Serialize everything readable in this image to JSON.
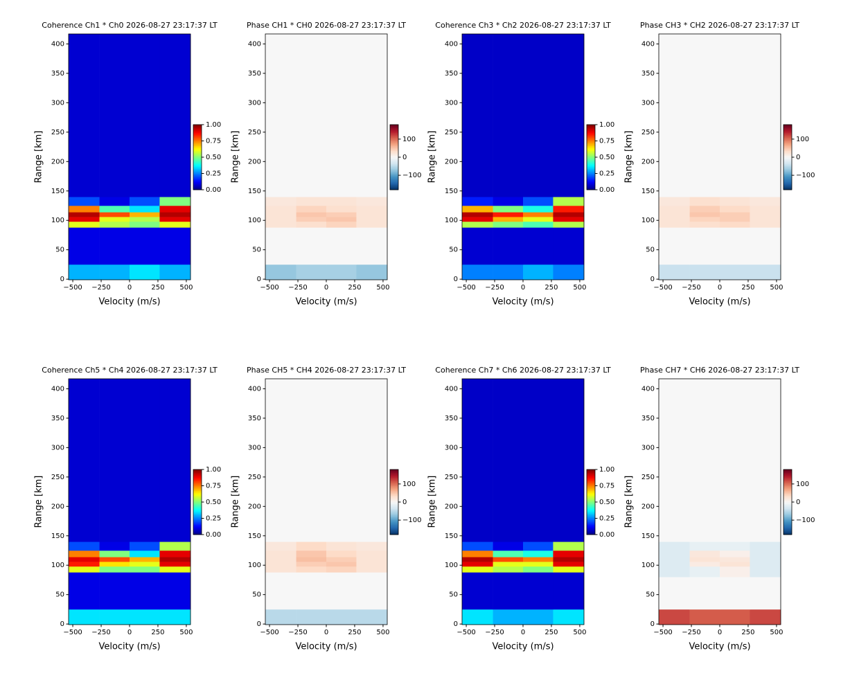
{
  "chart_data": [
    {
      "type": "heatmap",
      "title": "Coherence Ch1 * Ch0 2026-08-27 23:17:37 LT",
      "xlabel": "Velocity (m/s)",
      "ylabel": "Range [km]",
      "colormap": "jet",
      "xbins": [
        -537,
        -265,
        0,
        265,
        537
      ],
      "ybins": [
        -1,
        25,
        88,
        98,
        106,
        114,
        125,
        140,
        417
      ],
      "z": [
        [
          0.3,
          0.3,
          0.35,
          0.3
        ],
        [
          0.1,
          0.1,
          0.1,
          0.1
        ],
        [
          0.6,
          0.55,
          0.5,
          0.6
        ],
        [
          0.9,
          0.6,
          0.55,
          0.9
        ],
        [
          0.95,
          0.8,
          0.7,
          0.95
        ],
        [
          0.75,
          0.45,
          0.35,
          0.9
        ],
        [
          0.2,
          0.1,
          0.2,
          0.5
        ],
        [
          0.08,
          0.08,
          0.08,
          0.08
        ]
      ],
      "xlim": [
        -537,
        537
      ],
      "ylim": [
        -1,
        417
      ],
      "xticks": [
        {
          "value": -500,
          "label": "−500"
        },
        {
          "value": -250,
          "label": "−250"
        },
        0,
        250,
        500
      ],
      "yticks": [
        0,
        50,
        100,
        150,
        200,
        250,
        300,
        350,
        400
      ],
      "clim": [
        0,
        1
      ],
      "cticks": [
        {
          "value": 0,
          "label": "0.00"
        },
        {
          "value": 0.25,
          "label": "0.25"
        },
        {
          "value": 0.5,
          "label": "0.50"
        },
        {
          "value": 0.75,
          "label": "0.75"
        },
        {
          "value": 1,
          "label": "1.00"
        }
      ]
    },
    {
      "type": "heatmap",
      "title": "Phase CH1 * CH0 2026-08-27 23:17:37 LT",
      "xlabel": "Velocity (m/s)",
      "ylabel": "Range [km]",
      "colormap": "RdBu_r",
      "xbins": [
        -537,
        -265,
        0,
        265,
        537
      ],
      "ybins": [
        -1,
        25,
        88,
        98,
        106,
        114,
        125,
        140,
        417
      ],
      "z": [
        [
          -70,
          -60,
          -60,
          -70
        ],
        [
          0,
          0,
          0,
          0
        ],
        [
          25,
          30,
          40,
          25
        ],
        [
          25,
          45,
          50,
          25
        ],
        [
          25,
          50,
          45,
          25
        ],
        [
          25,
          40,
          30,
          25
        ],
        [
          20,
          25,
          25,
          20
        ],
        [
          0,
          0,
          0,
          0
        ]
      ],
      "xlim": [
        -537,
        537
      ],
      "ylim": [
        -1,
        417
      ],
      "xticks": [
        {
          "value": -500,
          "label": "−500"
        },
        {
          "value": -250,
          "label": "−250"
        },
        0,
        250,
        500
      ],
      "yticks": [
        0,
        50,
        100,
        150,
        200,
        250,
        300,
        350,
        400
      ],
      "clim": [
        -180,
        180
      ],
      "cticks": [
        {
          "value": -100,
          "label": "−100"
        },
        0,
        100
      ]
    },
    {
      "type": "heatmap",
      "title": "Coherence Ch3 * Ch2 2026-08-27 23:17:37 LT",
      "xlabel": "Velocity (m/s)",
      "ylabel": "Range [km]",
      "colormap": "jet",
      "xbins": [
        -537,
        -265,
        0,
        265,
        537
      ],
      "ybins": [
        -1,
        25,
        88,
        98,
        106,
        114,
        125,
        140,
        417
      ],
      "z": [
        [
          0.25,
          0.25,
          0.3,
          0.25
        ],
        [
          0.08,
          0.08,
          0.08,
          0.08
        ],
        [
          0.55,
          0.5,
          0.45,
          0.55
        ],
        [
          0.9,
          0.7,
          0.6,
          0.9
        ],
        [
          0.95,
          0.85,
          0.75,
          0.95
        ],
        [
          0.7,
          0.5,
          0.4,
          0.85
        ],
        [
          0.15,
          0.1,
          0.2,
          0.55
        ],
        [
          0.07,
          0.07,
          0.07,
          0.07
        ]
      ],
      "xlim": [
        -537,
        537
      ],
      "ylim": [
        -1,
        417
      ],
      "xticks": [
        {
          "value": -500,
          "label": "−500"
        },
        {
          "value": -250,
          "label": "−250"
        },
        0,
        250,
        500
      ],
      "yticks": [
        0,
        50,
        100,
        150,
        200,
        250,
        300,
        350,
        400
      ],
      "clim": [
        0,
        1
      ],
      "cticks": [
        {
          "value": 0,
          "label": "0.00"
        },
        {
          "value": 0.25,
          "label": "0.25"
        },
        {
          "value": 0.5,
          "label": "0.50"
        },
        {
          "value": 0.75,
          "label": "0.75"
        },
        {
          "value": 1,
          "label": "1.00"
        }
      ]
    },
    {
      "type": "heatmap",
      "title": "Phase CH3 * CH2 2026-08-27 23:17:37 LT",
      "xlabel": "Velocity (m/s)",
      "ylabel": "Range [km]",
      "colormap": "RdBu_r",
      "xbins": [
        -537,
        -265,
        0,
        265,
        537
      ],
      "ybins": [
        -1,
        25,
        88,
        98,
        106,
        114,
        125,
        140,
        417
      ],
      "z": [
        [
          -40,
          -40,
          -40,
          -40
        ],
        [
          0,
          0,
          0,
          0
        ],
        [
          25,
          30,
          35,
          25
        ],
        [
          25,
          40,
          45,
          25
        ],
        [
          25,
          50,
          45,
          25
        ],
        [
          25,
          45,
          35,
          25
        ],
        [
          20,
          30,
          25,
          20
        ],
        [
          0,
          0,
          0,
          0
        ]
      ],
      "xlim": [
        -537,
        537
      ],
      "ylim": [
        -1,
        417
      ],
      "xticks": [
        {
          "value": -500,
          "label": "−500"
        },
        {
          "value": -250,
          "label": "−250"
        },
        0,
        250,
        500
      ],
      "yticks": [
        0,
        50,
        100,
        150,
        200,
        250,
        300,
        350,
        400
      ],
      "clim": [
        -180,
        180
      ],
      "cticks": [
        {
          "value": -100,
          "label": "−100"
        },
        0,
        100
      ]
    },
    {
      "type": "heatmap",
      "title": "Coherence Ch5 * Ch4 2026-08-27 23:17:37 LT",
      "xlabel": "Velocity (m/s)",
      "ylabel": "Range [km]",
      "colormap": "jet",
      "xbins": [
        -537,
        -265,
        0,
        265,
        537
      ],
      "ybins": [
        -1,
        25,
        88,
        98,
        106,
        114,
        125,
        140,
        417
      ],
      "z": [
        [
          0.35,
          0.35,
          0.35,
          0.35
        ],
        [
          0.1,
          0.1,
          0.1,
          0.1
        ],
        [
          0.6,
          0.5,
          0.5,
          0.6
        ],
        [
          0.85,
          0.65,
          0.6,
          0.9
        ],
        [
          0.9,
          0.8,
          0.7,
          0.95
        ],
        [
          0.75,
          0.5,
          0.35,
          0.9
        ],
        [
          0.2,
          0.1,
          0.2,
          0.55
        ],
        [
          0.08,
          0.08,
          0.08,
          0.08
        ]
      ],
      "xlim": [
        -537,
        537
      ],
      "ylim": [
        -1,
        417
      ],
      "xticks": [
        {
          "value": -500,
          "label": "−500"
        },
        {
          "value": -250,
          "label": "−250"
        },
        0,
        250,
        500
      ],
      "yticks": [
        0,
        50,
        100,
        150,
        200,
        250,
        300,
        350,
        400
      ],
      "clim": [
        0,
        1
      ],
      "cticks": [
        {
          "value": 0,
          "label": "0.00"
        },
        {
          "value": 0.25,
          "label": "0.25"
        },
        {
          "value": 0.5,
          "label": "0.50"
        },
        {
          "value": 0.75,
          "label": "0.75"
        },
        {
          "value": 1,
          "label": "1.00"
        }
      ]
    },
    {
      "type": "heatmap",
      "title": "Phase CH5 * CH4 2026-08-27 23:17:37 LT",
      "xlabel": "Velocity (m/s)",
      "ylabel": "Range [km]",
      "colormap": "RdBu_r",
      "xbins": [
        -537,
        -265,
        0,
        265,
        537
      ],
      "ybins": [
        -1,
        25,
        88,
        98,
        106,
        114,
        125,
        140,
        417
      ],
      "z": [
        [
          -50,
          -50,
          -50,
          -50
        ],
        [
          0,
          0,
          0,
          0
        ],
        [
          25,
          35,
          40,
          25
        ],
        [
          25,
          45,
          50,
          25
        ],
        [
          25,
          55,
          45,
          25
        ],
        [
          25,
          50,
          35,
          25
        ],
        [
          20,
          35,
          25,
          20
        ],
        [
          0,
          0,
          0,
          0
        ]
      ],
      "xlim": [
        -537,
        537
      ],
      "ylim": [
        -1,
        417
      ],
      "xticks": [
        {
          "value": -500,
          "label": "−500"
        },
        {
          "value": -250,
          "label": "−250"
        },
        0,
        250,
        500
      ],
      "yticks": [
        0,
        50,
        100,
        150,
        200,
        250,
        300,
        350,
        400
      ],
      "clim": [
        -180,
        180
      ],
      "cticks": [
        {
          "value": -100,
          "label": "−100"
        },
        0,
        100
      ]
    },
    {
      "type": "heatmap",
      "title": "Coherence Ch7 * Ch6 2026-08-27 23:17:37 LT",
      "xlabel": "Velocity (m/s)",
      "ylabel": "Range [km]",
      "colormap": "jet",
      "xbins": [
        -537,
        -265,
        0,
        265,
        537
      ],
      "ybins": [
        -1,
        25,
        88,
        98,
        106,
        114,
        125,
        140,
        417
      ],
      "z": [
        [
          0.35,
          0.3,
          0.3,
          0.35
        ],
        [
          0.08,
          0.08,
          0.08,
          0.08
        ],
        [
          0.6,
          0.55,
          0.5,
          0.6
        ],
        [
          0.9,
          0.6,
          0.6,
          0.9
        ],
        [
          0.95,
          0.8,
          0.75,
          0.95
        ],
        [
          0.75,
          0.45,
          0.4,
          0.9
        ],
        [
          0.2,
          0.1,
          0.2,
          0.55
        ],
        [
          0.07,
          0.07,
          0.07,
          0.07
        ]
      ],
      "xlim": [
        -537,
        537
      ],
      "ylim": [
        -1,
        417
      ],
      "xticks": [
        {
          "value": -500,
          "label": "−500"
        },
        {
          "value": -250,
          "label": "−250"
        },
        0,
        250,
        500
      ],
      "yticks": [
        0,
        50,
        100,
        150,
        200,
        250,
        300,
        350,
        400
      ],
      "clim": [
        0,
        1
      ],
      "cticks": [
        {
          "value": 0,
          "label": "0.00"
        },
        {
          "value": 0.25,
          "label": "0.25"
        },
        {
          "value": 0.5,
          "label": "0.50"
        },
        {
          "value": 0.75,
          "label": "0.75"
        },
        {
          "value": 1,
          "label": "1.00"
        }
      ]
    },
    {
      "type": "heatmap",
      "title": "Phase CH7 * CH6 2026-08-27 23:17:37 LT",
      "xlabel": "Velocity (m/s)",
      "ylabel": "Range [km]",
      "colormap": "RdBu_r",
      "xbins": [
        -537,
        -265,
        0,
        265,
        537
      ],
      "ybins": [
        -1,
        25,
        80,
        98,
        106,
        114,
        125,
        140,
        417
      ],
      "z": [
        [
          120,
          110,
          110,
          120
        ],
        [
          0,
          0,
          0,
          0
        ],
        [
          -25,
          -15,
          10,
          -25
        ],
        [
          -25,
          15,
          25,
          -25
        ],
        [
          -25,
          25,
          20,
          -25
        ],
        [
          -25,
          20,
          10,
          -25
        ],
        [
          -25,
          -15,
          -15,
          -25
        ],
        [
          0,
          0,
          0,
          0
        ]
      ],
      "xlim": [
        -537,
        537
      ],
      "ylim": [
        -1,
        417
      ],
      "xticks": [
        {
          "value": -500,
          "label": "−500"
        },
        {
          "value": -250,
          "label": "−250"
        },
        0,
        250,
        500
      ],
      "yticks": [
        0,
        50,
        100,
        150,
        200,
        250,
        300,
        350,
        400
      ],
      "clim": [
        -180,
        180
      ],
      "cticks": [
        {
          "value": -100,
          "label": "−100"
        },
        0,
        100
      ]
    }
  ]
}
